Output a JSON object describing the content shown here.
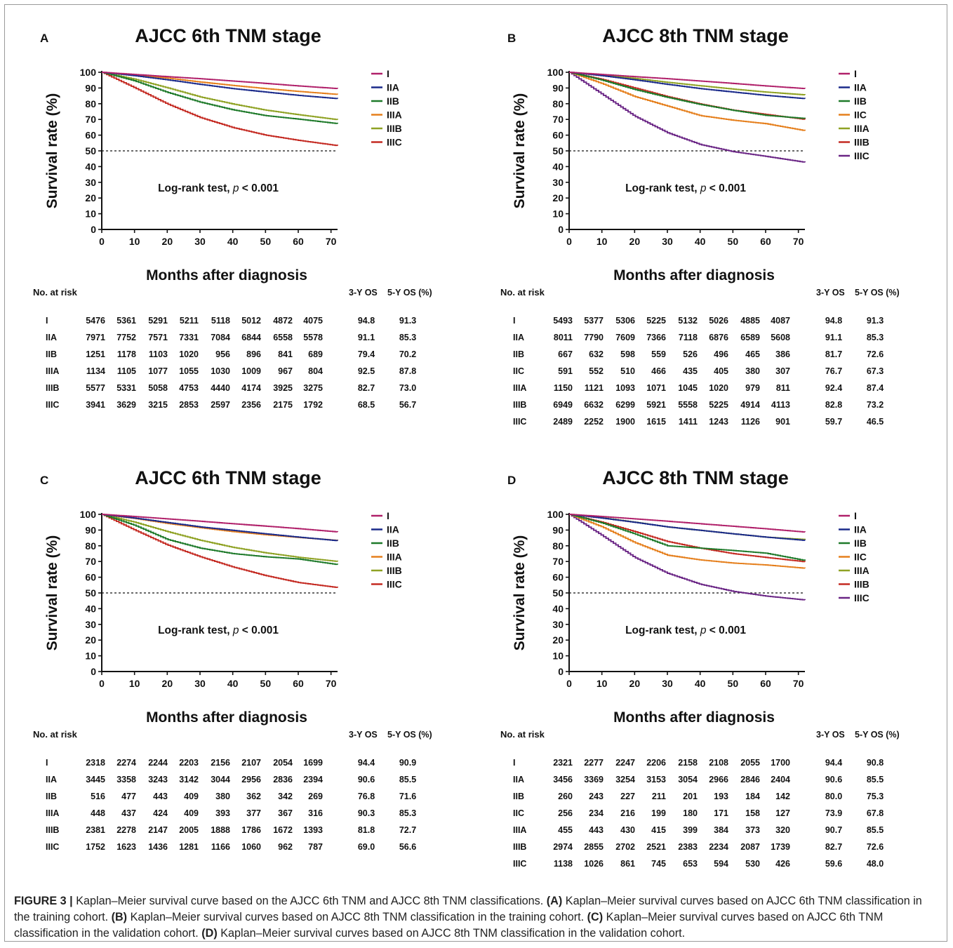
{
  "chart_data": [
    {
      "panel": "A",
      "type": "line",
      "title": "AJCC 6th TNM stage",
      "xlabel": "Months after diagnosis",
      "ylabel": "Survival rate (%)",
      "xlim": [
        0,
        72
      ],
      "ylim": [
        0,
        100
      ],
      "xticks": [
        "0",
        "10",
        "20",
        "30",
        "40",
        "50",
        "60",
        "70"
      ],
      "yticks": [
        "0",
        "10",
        "20",
        "30",
        "40",
        "50",
        "60",
        "70",
        "80",
        "90",
        "100"
      ],
      "annotation": "Log-rank test, p < 0.001",
      "reference_line": 50,
      "legend_position": "top-right",
      "x": [
        0,
        10,
        20,
        30,
        40,
        50,
        60,
        72
      ],
      "series": [
        {
          "name": "I",
          "color": "#b0206a",
          "values": [
            100,
            98.6,
            97.2,
            95.9,
            94.4,
            92.9,
            91.3,
            89.6
          ]
        },
        {
          "name": "IIA",
          "color": "#1a2a8a",
          "values": [
            100,
            97.8,
            95.2,
            92.3,
            89.6,
            87.4,
            85.3,
            83.2
          ]
        },
        {
          "name": "IIB",
          "color": "#1e7a2a",
          "values": [
            100,
            94.5,
            87.2,
            81.0,
            76.1,
            72.4,
            70.2,
            67.3
          ]
        },
        {
          "name": "IIIA",
          "color": "#e57f1c",
          "values": [
            100,
            98.2,
            96.3,
            93.8,
            91.6,
            89.6,
            87.8,
            85.9
          ]
        },
        {
          "name": "IIIB",
          "color": "#8fa224",
          "values": [
            100,
            95.6,
            90.1,
            84.3,
            79.8,
            75.9,
            73.0,
            69.8
          ]
        },
        {
          "name": "IIIC",
          "color": "#c42a22",
          "values": [
            100,
            90.1,
            79.8,
            71.2,
            64.8,
            60.0,
            56.7,
            53.3
          ]
        }
      ],
      "risk_table": {
        "header": "No. at risk",
        "col_3y": "3-Y OS",
        "col_5y": "5-Y OS (%)",
        "rows": [
          {
            "stage": "I",
            "counts": [
              "5476",
              "5361",
              "5291",
              "5211",
              "5118",
              "5012",
              "4872",
              "4075"
            ],
            "os3": "94.8",
            "os5": "91.3"
          },
          {
            "stage": "IIA",
            "counts": [
              "7971",
              "7752",
              "7571",
              "7331",
              "7084",
              "6844",
              "6558",
              "5578"
            ],
            "os3": "91.1",
            "os5": "85.3"
          },
          {
            "stage": "IIB",
            "counts": [
              "1251",
              "1178",
              "1103",
              "1020",
              "956",
              "896",
              "841",
              "689"
            ],
            "os3": "79.4",
            "os5": "70.2"
          },
          {
            "stage": "IIIA",
            "counts": [
              "1134",
              "1105",
              "1077",
              "1055",
              "1030",
              "1009",
              "967",
              "804"
            ],
            "os3": "92.5",
            "os5": "87.8"
          },
          {
            "stage": "IIIB",
            "counts": [
              "5577",
              "5331",
              "5058",
              "4753",
              "4440",
              "4174",
              "3925",
              "3275"
            ],
            "os3": "82.7",
            "os5": "73.0"
          },
          {
            "stage": "IIIC",
            "counts": [
              "3941",
              "3629",
              "3215",
              "2853",
              "2597",
              "2356",
              "2175",
              "1792"
            ],
            "os3": "68.5",
            "os5": "56.7"
          }
        ]
      }
    },
    {
      "panel": "B",
      "type": "line",
      "title": "AJCC 8th TNM stage",
      "xlabel": "Months after diagnosis",
      "ylabel": "Survival rate (%)",
      "xlim": [
        0,
        72
      ],
      "ylim": [
        0,
        100
      ],
      "xticks": [
        "0",
        "10",
        "20",
        "30",
        "40",
        "50",
        "60",
        "70"
      ],
      "yticks": [
        "0",
        "10",
        "20",
        "30",
        "40",
        "50",
        "60",
        "70",
        "80",
        "90",
        "100"
      ],
      "annotation": "Log-rank test, p < 0.001",
      "reference_line": 50,
      "legend_position": "top-right",
      "x": [
        0,
        10,
        20,
        30,
        40,
        50,
        60,
        72
      ],
      "series": [
        {
          "name": "I",
          "color": "#b0206a",
          "values": [
            100,
            98.6,
            97.2,
            95.9,
            94.4,
            92.9,
            91.3,
            89.6
          ]
        },
        {
          "name": "IIA",
          "color": "#1a2a8a",
          "values": [
            100,
            97.8,
            95.2,
            92.3,
            89.6,
            87.4,
            85.3,
            83.2
          ]
        },
        {
          "name": "IIB",
          "color": "#1e7a2a",
          "values": [
            100,
            95.0,
            89.0,
            84.0,
            79.5,
            75.8,
            72.6,
            70.6
          ]
        },
        {
          "name": "IIC",
          "color": "#e57f1c",
          "values": [
            100,
            92.8,
            84.5,
            78.5,
            72.4,
            69.5,
            67.3,
            62.8
          ]
        },
        {
          "name": "IIIA",
          "color": "#8fa224",
          "values": [
            100,
            98.1,
            96.1,
            93.6,
            91.4,
            89.3,
            87.4,
            85.6
          ]
        },
        {
          "name": "IIIB",
          "color": "#c42a22",
          "values": [
            100,
            95.5,
            90.0,
            84.5,
            79.8,
            75.9,
            73.2,
            70.0
          ]
        },
        {
          "name": "IIIC",
          "color": "#6a2585",
          "values": [
            100,
            86.0,
            72.0,
            61.5,
            54.0,
            49.5,
            46.5,
            42.7
          ]
        }
      ],
      "risk_table": {
        "header": "No. at risk",
        "col_3y": "3-Y OS",
        "col_5y": "5-Y OS (%)",
        "rows": [
          {
            "stage": "I",
            "counts": [
              "5493",
              "5377",
              "5306",
              "5225",
              "5132",
              "5026",
              "4885",
              "4087"
            ],
            "os3": "94.8",
            "os5": "91.3"
          },
          {
            "stage": "IIA",
            "counts": [
              "8011",
              "7790",
              "7609",
              "7366",
              "7118",
              "6876",
              "6589",
              "5608"
            ],
            "os3": "91.1",
            "os5": "85.3"
          },
          {
            "stage": "IIB",
            "counts": [
              "667",
              "632",
              "598",
              "559",
              "526",
              "496",
              "465",
              "386"
            ],
            "os3": "81.7",
            "os5": "72.6"
          },
          {
            "stage": "IIC",
            "counts": [
              "591",
              "552",
              "510",
              "466",
              "435",
              "405",
              "380",
              "307"
            ],
            "os3": "76.7",
            "os5": "67.3"
          },
          {
            "stage": "IIIA",
            "counts": [
              "1150",
              "1121",
              "1093",
              "1071",
              "1045",
              "1020",
              "979",
              "811"
            ],
            "os3": "92.4",
            "os5": "87.4"
          },
          {
            "stage": "IIIB",
            "counts": [
              "6949",
              "6632",
              "6299",
              "5921",
              "5558",
              "5225",
              "4914",
              "4113"
            ],
            "os3": "82.8",
            "os5": "73.2"
          },
          {
            "stage": "IIIC",
            "counts": [
              "2489",
              "2252",
              "1900",
              "1615",
              "1411",
              "1243",
              "1126",
              "901"
            ],
            "os3": "59.7",
            "os5": "46.5"
          }
        ]
      }
    },
    {
      "panel": "C",
      "type": "line",
      "title": "AJCC 6th TNM stage",
      "xlabel": "Months after diagnosis",
      "ylabel": "Survival rate (%)",
      "xlim": [
        0,
        72
      ],
      "ylim": [
        0,
        100
      ],
      "xticks": [
        "0",
        "10",
        "20",
        "30",
        "40",
        "50",
        "60",
        "70"
      ],
      "yticks": [
        "0",
        "10",
        "20",
        "30",
        "40",
        "50",
        "60",
        "70",
        "80",
        "90",
        "100"
      ],
      "annotation": "Log-rank test, p < 0.001",
      "reference_line": 50,
      "legend_position": "top-right",
      "x": [
        0,
        10,
        20,
        30,
        40,
        50,
        60,
        72
      ],
      "series": [
        {
          "name": "I",
          "color": "#b0206a",
          "values": [
            100,
            98.6,
            97.1,
            95.6,
            94.0,
            92.5,
            90.9,
            88.8
          ]
        },
        {
          "name": "IIA",
          "color": "#1a2a8a",
          "values": [
            100,
            97.6,
            94.8,
            92.0,
            89.8,
            87.6,
            85.5,
            83.2
          ]
        },
        {
          "name": "IIB",
          "color": "#1e7a2a",
          "values": [
            100,
            93.0,
            84.0,
            78.5,
            75.0,
            73.0,
            71.6,
            68.0
          ]
        },
        {
          "name": "IIIA",
          "color": "#e57f1c",
          "values": [
            100,
            97.4,
            94.2,
            91.5,
            89.0,
            87.0,
            85.3,
            83.4
          ]
        },
        {
          "name": "IIIB",
          "color": "#8fa224",
          "values": [
            100,
            95.0,
            89.0,
            83.5,
            79.0,
            75.5,
            72.7,
            70.0
          ]
        },
        {
          "name": "IIIC",
          "color": "#c42a22",
          "values": [
            100,
            90.0,
            80.5,
            73.0,
            66.5,
            61.0,
            56.6,
            53.4
          ]
        }
      ],
      "risk_table": {
        "header": "No. at risk",
        "col_3y": "3-Y OS",
        "col_5y": "5-Y OS (%)",
        "rows": [
          {
            "stage": "I",
            "counts": [
              "2318",
              "2274",
              "2244",
              "2203",
              "2156",
              "2107",
              "2054",
              "1699"
            ],
            "os3": "94.4",
            "os5": "90.9"
          },
          {
            "stage": "IIA",
            "counts": [
              "3445",
              "3358",
              "3243",
              "3142",
              "3044",
              "2956",
              "2836",
              "2394"
            ],
            "os3": "90.6",
            "os5": "85.5"
          },
          {
            "stage": "IIB",
            "counts": [
              "516",
              "477",
              "443",
              "409",
              "380",
              "362",
              "342",
              "269"
            ],
            "os3": "76.8",
            "os5": "71.6"
          },
          {
            "stage": "IIIA",
            "counts": [
              "448",
              "437",
              "424",
              "409",
              "393",
              "377",
              "367",
              "316"
            ],
            "os3": "90.3",
            "os5": "85.3"
          },
          {
            "stage": "IIIB",
            "counts": [
              "2381",
              "2278",
              "2147",
              "2005",
              "1888",
              "1786",
              "1672",
              "1393"
            ],
            "os3": "81.8",
            "os5": "72.7"
          },
          {
            "stage": "IIIC",
            "counts": [
              "1752",
              "1623",
              "1436",
              "1281",
              "1166",
              "1060",
              "962",
              "787"
            ],
            "os3": "69.0",
            "os5": "56.6"
          }
        ]
      }
    },
    {
      "panel": "D",
      "type": "line",
      "title": "AJCC 8th TNM stage",
      "xlabel": "Months after diagnosis",
      "ylabel": "Survival rate (%)",
      "xlim": [
        0,
        72
      ],
      "ylim": [
        0,
        100
      ],
      "xticks": [
        "0",
        "10",
        "20",
        "30",
        "40",
        "50",
        "60",
        "70"
      ],
      "yticks": [
        "0",
        "10",
        "20",
        "30",
        "40",
        "50",
        "60",
        "70",
        "80",
        "90",
        "100"
      ],
      "annotation": "Log-rank test, p < 0.001",
      "reference_line": 50,
      "legend_position": "top-right",
      "x": [
        0,
        10,
        20,
        30,
        40,
        50,
        60,
        72
      ],
      "series": [
        {
          "name": "I",
          "color": "#b0206a",
          "values": [
            100,
            98.6,
            97.1,
            95.6,
            94.0,
            92.4,
            90.8,
            88.7
          ]
        },
        {
          "name": "IIA",
          "color": "#1a2a8a",
          "values": [
            100,
            97.6,
            94.9,
            92.0,
            89.8,
            87.6,
            85.5,
            83.4
          ]
        },
        {
          "name": "IIB",
          "color": "#1e7a2a",
          "values": [
            100,
            94.5,
            87.5,
            80.0,
            78.5,
            77.0,
            75.3,
            70.6
          ]
        },
        {
          "name": "IIC",
          "color": "#e57f1c",
          "values": [
            100,
            92.0,
            82.0,
            74.0,
            71.0,
            69.0,
            67.8,
            65.7
          ]
        },
        {
          "name": "IIIA",
          "color": "#8fa224",
          "values": [
            100,
            97.8,
            95.0,
            92.0,
            89.8,
            87.6,
            85.5,
            84.0
          ]
        },
        {
          "name": "IIIB",
          "color": "#c42a22",
          "values": [
            100,
            95.0,
            89.0,
            82.7,
            78.5,
            75.0,
            72.6,
            69.8
          ]
        },
        {
          "name": "IIIC",
          "color": "#6a2585",
          "values": [
            100,
            86.5,
            72.5,
            62.5,
            55.5,
            51.0,
            48.0,
            45.5
          ]
        }
      ],
      "risk_table": {
        "header": "No. at risk",
        "col_3y": "3-Y OS",
        "col_5y": "5-Y OS (%)",
        "rows": [
          {
            "stage": "I",
            "counts": [
              "2321",
              "2277",
              "2247",
              "2206",
              "2158",
              "2108",
              "2055",
              "1700"
            ],
            "os3": "94.4",
            "os5": "90.8"
          },
          {
            "stage": "IIA",
            "counts": [
              "3456",
              "3369",
              "3254",
              "3153",
              "3054",
              "2966",
              "2846",
              "2404"
            ],
            "os3": "90.6",
            "os5": "85.5"
          },
          {
            "stage": "IIB",
            "counts": [
              "260",
              "243",
              "227",
              "211",
              "201",
              "193",
              "184",
              "142"
            ],
            "os3": "80.0",
            "os5": "75.3"
          },
          {
            "stage": "IIC",
            "counts": [
              "256",
              "234",
              "216",
              "199",
              "180",
              "171",
              "158",
              "127"
            ],
            "os3": "73.9",
            "os5": "67.8"
          },
          {
            "stage": "IIIA",
            "counts": [
              "455",
              "443",
              "430",
              "415",
              "399",
              "384",
              "373",
              "320"
            ],
            "os3": "90.7",
            "os5": "85.5"
          },
          {
            "stage": "IIIB",
            "counts": [
              "2974",
              "2855",
              "2702",
              "2521",
              "2383",
              "2234",
              "2087",
              "1739"
            ],
            "os3": "82.7",
            "os5": "72.6"
          },
          {
            "stage": "IIIC",
            "counts": [
              "1138",
              "1026",
              "861",
              "745",
              "653",
              "594",
              "530",
              "426"
            ],
            "os3": "59.6",
            "os5": "48.0"
          }
        ]
      }
    }
  ],
  "caption": {
    "label": "FIGURE 3 |",
    "intro": "Kaplan–Meier survival curve based on the AJCC 6th TNM and AJCC 8th TNM classifications.",
    "parts": [
      {
        "tag": "(A)",
        "text": "Kaplan–Meier survival curves based on AJCC 6th TNM classification in the training cohort."
      },
      {
        "tag": "(B)",
        "text": "Kaplan–Meier survival curves based on AJCC 8th TNM classification in the training cohort."
      },
      {
        "tag": "(C)",
        "text": "Kaplan–Meier survival curves based on AJCC 6th TNM classification in the validation cohort."
      },
      {
        "tag": "(D)",
        "text": "Kaplan–Meier survival curves based on AJCC 8th TNM classification in the validation cohort."
      }
    ]
  }
}
